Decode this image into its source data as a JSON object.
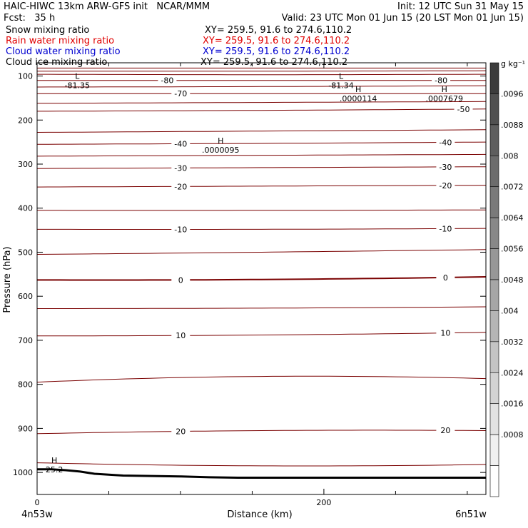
{
  "header": {
    "title_left": "HAIC-HIWC 13km ARW-GFS init   NCAR/MMM",
    "init": "Init: 12 UTC Sun 31 May 15",
    "fcst": "Fcst:   35 h",
    "valid": "Valid: 23 UTC Mon 01 Jun 15 (20 LST Mon 01 Jun 15)",
    "fields": [
      {
        "name": "Snow mixing ratio",
        "xy": "XY= 259.5, 91.6 to 274.6,110.2",
        "color": "#000000"
      },
      {
        "name": "Rain water mixing ratio",
        "xy": "XY= 259.5, 91.6 to 274.6,110.2",
        "color": "#e00000"
      },
      {
        "name": "Cloud water mixing ratio",
        "xy": "XY= 259.5, 91.6 to 274.6,110.2",
        "color": "#0000d0"
      },
      {
        "name": "Cloud ice mixing ratio",
        "xy": "XY= 259.5, 91.6 to 274.6,110.2",
        "color": "#000000"
      }
    ]
  },
  "chart_data": {
    "type": "line",
    "title": "",
    "xlabel": "Distance (km)",
    "ylabel": "Pressure (hPa)",
    "xlim": [
      0,
      313
    ],
    "ylim": [
      1050,
      70
    ],
    "x_ticks": [
      {
        "value": 0,
        "label": "0"
      },
      {
        "value": 200,
        "label": "200"
      }
    ],
    "x_minor_step": 50,
    "y_ticks": [
      {
        "value": 100,
        "label": "100"
      },
      {
        "value": 200,
        "label": "200"
      },
      {
        "value": 300,
        "label": "300"
      },
      {
        "value": 400,
        "label": "400"
      },
      {
        "value": 500,
        "label": "500"
      },
      {
        "value": 600,
        "label": "600"
      },
      {
        "value": 700,
        "label": "700"
      },
      {
        "value": 800,
        "label": "800"
      },
      {
        "value": 900,
        "label": "900"
      },
      {
        "value": 1000,
        "label": "1000"
      }
    ],
    "x_end_labels": {
      "left": "4n53w",
      "right": "6n51w"
    },
    "contour_color": "#7a0000",
    "isotherms": [
      {
        "p": [
          82,
          82,
          82
        ]
      },
      {
        "p": [
          89,
          89,
          88
        ]
      },
      {
        "p": [
          96,
          97,
          96
        ]
      },
      {
        "p": [
          110,
          110,
          110
        ],
        "label": "-80",
        "at": [
          0.29,
          0.9
        ]
      },
      {
        "p": [
          125,
          124,
          122
        ]
      },
      {
        "p": [
          140,
          140,
          140
        ],
        "label": "-70",
        "at": [
          0.32
        ]
      },
      {
        "p": [
          162,
          160,
          158
        ]
      },
      {
        "p": [
          180,
          178,
          175
        ],
        "label": "-50",
        "at": [
          0.95
        ]
      },
      {
        "p": [
          228,
          225,
          222
        ]
      },
      {
        "p": [
          255,
          253,
          250
        ],
        "label": "-40",
        "at": [
          0.32,
          0.91
        ]
      },
      {
        "p": [
          282,
          280,
          278
        ]
      },
      {
        "p": [
          310,
          308,
          306
        ],
        "label": "-30",
        "at": [
          0.32,
          0.91
        ]
      },
      {
        "p": [
          352,
          350,
          348
        ],
        "label": "-20",
        "at": [
          0.32,
          0.91
        ]
      },
      {
        "p": [
          405,
          405,
          404
        ]
      },
      {
        "p": [
          448,
          448,
          446
        ],
        "label": "-10",
        "at": [
          0.32,
          0.91
        ]
      },
      {
        "p": [
          505,
          500,
          494
        ]
      },
      {
        "p": [
          563,
          562,
          556
        ],
        "label": "0",
        "at": [
          0.32,
          0.91
        ],
        "bold": true
      },
      {
        "p": [
          628,
          627,
          624
        ]
      },
      {
        "p": [
          690,
          688,
          682
        ],
        "label": "10",
        "at": [
          0.32,
          0.91
        ]
      },
      {
        "p": [
          795,
          782,
          787
        ]
      },
      {
        "p": [
          912,
          905,
          905
        ],
        "label": "20",
        "at": [
          0.32,
          0.91
        ]
      },
      {
        "p": [
          978,
          985,
          982
        ]
      }
    ],
    "extrema": [
      {
        "sym": "L",
        "value": "-81.35",
        "x": 28,
        "p": 110
      },
      {
        "sym": "L",
        "value": "-81.34",
        "x": 212,
        "p": 110
      },
      {
        "sym": "H",
        "value": ".0000114",
        "x": 224,
        "p": 140
      },
      {
        "sym": "H",
        "value": ".0007679",
        "x": 284,
        "p": 140
      },
      {
        "sym": "H",
        "value": ".0000095",
        "x": 128,
        "p": 256
      },
      {
        "sym": "H",
        "value": "25.2",
        "x": 12,
        "p": 982
      }
    ],
    "terrain": {
      "x": [
        0,
        10,
        20,
        30,
        40,
        60,
        80,
        100,
        120,
        140,
        160,
        200,
        240,
        280,
        313
      ],
      "p": [
        993,
        993,
        995,
        998,
        1003,
        1007,
        1008,
        1009,
        1011,
        1012,
        1012,
        1012,
        1012,
        1012,
        1012
      ]
    },
    "colorbar": {
      "unit": "g kg⁻¹",
      "labels": [
        ".0096",
        ".0088",
        ".008",
        ".0072",
        ".0064",
        ".0056",
        ".0048",
        ".004",
        ".0032",
        ".0024",
        ".0016",
        ".0008"
      ],
      "colors": [
        "#3c3c3c",
        "#505050",
        "#5e5e5e",
        "#6c6c6c",
        "#7a7a7a",
        "#888888",
        "#979797",
        "#a6a6a6",
        "#b5b5b5",
        "#c4c4c4",
        "#d3d3d3",
        "#e2e2e2",
        "#f0f0f0",
        "#ffffff"
      ]
    }
  }
}
